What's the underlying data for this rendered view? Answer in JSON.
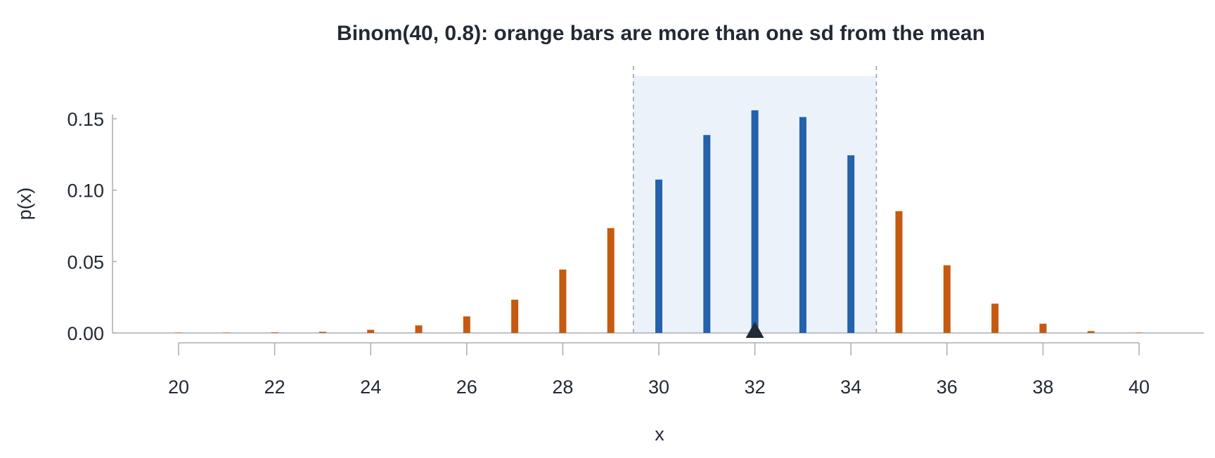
{
  "chart_data": {
    "type": "bar",
    "title": "Binom(40, 0.8): orange bars are more than one sd from the mean",
    "xlabel": "x",
    "ylabel": "p(x)",
    "x": [
      20,
      21,
      22,
      23,
      24,
      25,
      26,
      27,
      28,
      29,
      30,
      31,
      32,
      33,
      34,
      35,
      36,
      37,
      38,
      39,
      40
    ],
    "values": [
      0.0001,
      0.0002,
      0.0004,
      0.0008,
      0.0022,
      0.0053,
      0.0116,
      0.0233,
      0.0444,
      0.0734,
      0.1074,
      0.1386,
      0.1559,
      0.1512,
      0.1244,
      0.0853,
      0.0474,
      0.0205,
      0.0065,
      0.0013,
      0.0001
    ],
    "within_one_sd": [
      false,
      false,
      false,
      false,
      false,
      false,
      false,
      false,
      false,
      false,
      true,
      true,
      true,
      true,
      true,
      false,
      false,
      false,
      false,
      false,
      false
    ],
    "mean": 32,
    "sd_band": [
      29.47,
      34.53
    ],
    "xlim": [
      18.6,
      41.4
    ],
    "ylim": [
      0,
      0.18
    ],
    "xticks": [
      "20",
      "22",
      "24",
      "26",
      "28",
      "30",
      "32",
      "34",
      "36",
      "38",
      "40"
    ],
    "yticks": [
      "0.00",
      "0.05",
      "0.10",
      "0.15"
    ],
    "colors": {
      "outside": "#c55a11",
      "inside": "#2462aa",
      "band": "#ecf2fa",
      "band_line": "#9aa3ad",
      "axis": "#a9aeb5",
      "mean_marker": "#222a35"
    }
  }
}
